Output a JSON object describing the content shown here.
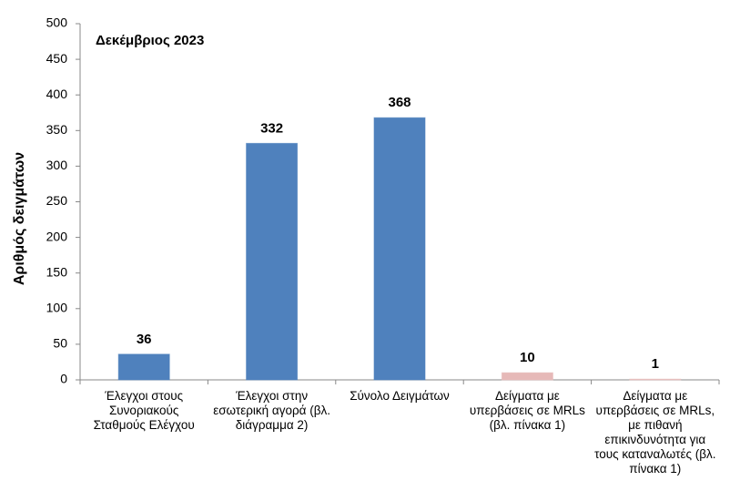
{
  "chart_data": {
    "type": "bar",
    "title": "Δεκέμβριος 2023",
    "y_label": "Αριθμός δειγμάτων",
    "categories": [
      "Έλεγχοι στους Συνοριακούς Σταθμούς Ελέγχου",
      "Έλεγχοι στην εσωτερική αγορά (βλ. διάγραμμα 2)",
      "Σύνολο Δειγμάτων",
      "Δείγματα με υπερβάσεις σε MRLs (βλ. πίνακα 1)",
      "Δείγματα με υπερβάσεις σε MRLs, με πιθανή επικινδυνότητα για τους καταναλωτές (βλ. πίνακα 1)"
    ],
    "values": [
      36,
      332,
      368,
      10,
      1
    ],
    "colors": [
      "#4f81bd",
      "#4f81bd",
      "#4f81bd",
      "#e6b9b8",
      "#e6b9b8"
    ],
    "ylim": [
      0,
      500
    ],
    "yticks": [
      0,
      50,
      100,
      150,
      200,
      250,
      300,
      350,
      400,
      450,
      500
    ],
    "grid": false
  }
}
